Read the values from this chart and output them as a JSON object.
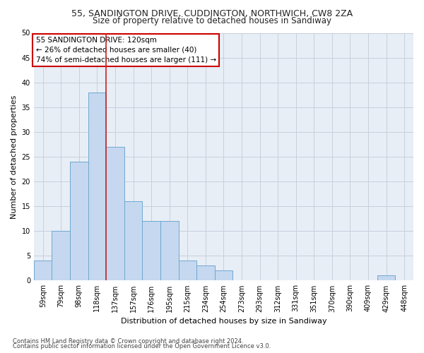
{
  "title1": "55, SANDINGTON DRIVE, CUDDINGTON, NORTHWICH, CW8 2ZA",
  "title2": "Size of property relative to detached houses in Sandiway",
  "xlabel": "Distribution of detached houses by size in Sandiway",
  "ylabel": "Number of detached properties",
  "categories": [
    "59sqm",
    "79sqm",
    "98sqm",
    "118sqm",
    "137sqm",
    "157sqm",
    "176sqm",
    "195sqm",
    "215sqm",
    "234sqm",
    "254sqm",
    "273sqm",
    "293sqm",
    "312sqm",
    "331sqm",
    "351sqm",
    "370sqm",
    "390sqm",
    "409sqm",
    "429sqm",
    "448sqm"
  ],
  "values": [
    4,
    10,
    24,
    38,
    27,
    16,
    12,
    12,
    4,
    3,
    2,
    0,
    0,
    0,
    0,
    0,
    0,
    0,
    0,
    1,
    0
  ],
  "bar_color": "#c5d8ef",
  "bar_edge_color": "#6fa8d0",
  "vline_after_index": 3,
  "vline_color": "#cc2222",
  "annotation_line1": "55 SANDINGTON DRIVE: 120sqm",
  "annotation_line2": "← 26% of detached houses are smaller (40)",
  "annotation_line3": "74% of semi-detached houses are larger (111) →",
  "annotation_box_color": "#ffffff",
  "annotation_box_edge_color": "#cc0000",
  "ylim": [
    0,
    50
  ],
  "yticks": [
    0,
    5,
    10,
    15,
    20,
    25,
    30,
    35,
    40,
    45,
    50
  ],
  "grid_color": "#c8d0dc",
  "bg_color": "#e8eef6",
  "footer1": "Contains HM Land Registry data © Crown copyright and database right 2024.",
  "footer2": "Contains public sector information licensed under the Open Government Licence v3.0.",
  "title1_fontsize": 9,
  "title2_fontsize": 8.5,
  "ylabel_fontsize": 8,
  "xlabel_fontsize": 8,
  "tick_fontsize": 7,
  "annotation_fontsize": 7.5,
  "footer_fontsize": 6
}
